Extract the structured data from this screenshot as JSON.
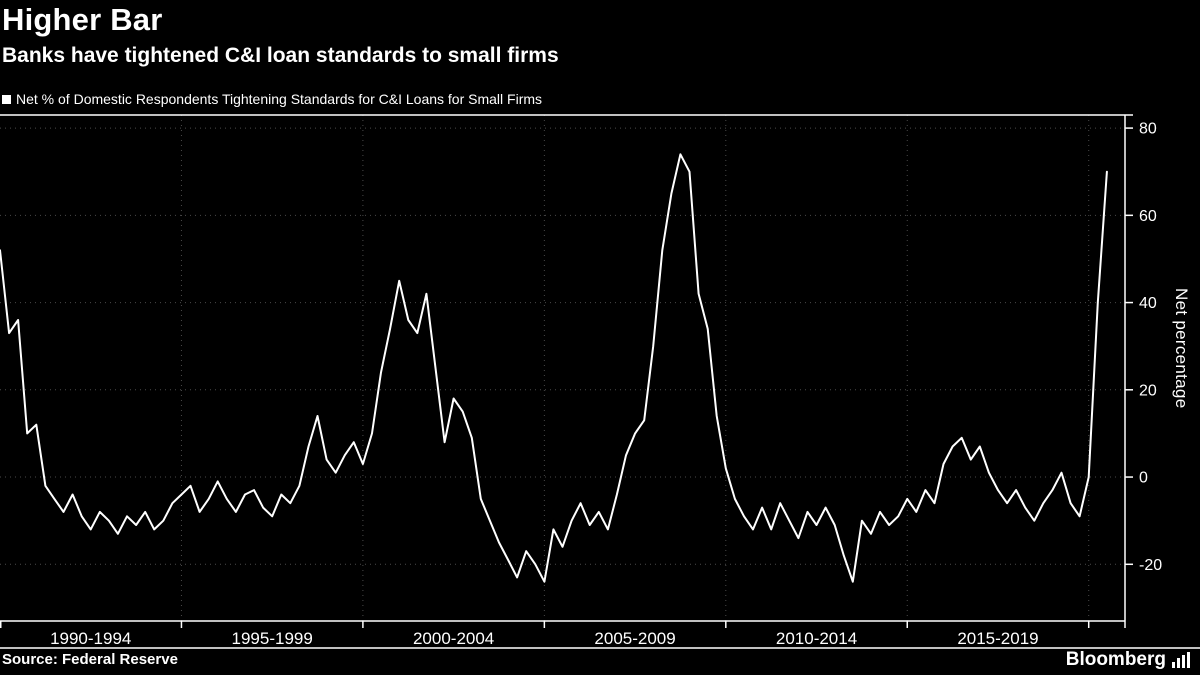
{
  "header": {
    "title": "Higher Bar",
    "subtitle": "Banks have tightened C&I loan standards to small firms",
    "legend": {
      "marker": "■",
      "label": "Net % of Domestic Respondents Tightening Standards for C&I Loans for Small Firms"
    }
  },
  "footer": {
    "source": "Source: Federal Reserve",
    "brand": "Bloomberg"
  },
  "chart_data": {
    "type": "line",
    "title": "Net % of Domestic Respondents Tightening Standards for C&I Loans for Small Firms",
    "ylabel": "Net percentage",
    "x_labels": [
      "1990-1994",
      "1995-1999",
      "2000-2004",
      "2005-2009",
      "2010-2014",
      "2015-2019"
    ],
    "y_ticks": [
      80,
      60,
      40,
      20,
      0,
      -20
    ],
    "ylim": [
      -33,
      83
    ],
    "frequency": "quarterly",
    "start_period": "1990",
    "values": [
      52,
      33,
      36,
      10,
      12,
      -2,
      -5,
      -8,
      -4,
      -9,
      -12,
      -8,
      -10,
      -13,
      -9,
      -11,
      -8,
      -12,
      -10,
      -6,
      -4,
      -2,
      -8,
      -5,
      -1,
      -5,
      -8,
      -4,
      -3,
      -7,
      -9,
      -4,
      -6,
      -2,
      7,
      14,
      4,
      1,
      5,
      8,
      3,
      10,
      24,
      34,
      45,
      36,
      33,
      42,
      25,
      8,
      18,
      15,
      9,
      -5,
      -10,
      -15,
      -19,
      -23,
      -17,
      -20,
      -24,
      -12,
      -16,
      -10,
      -6,
      -11,
      -8,
      -12,
      -4,
      5,
      10,
      13,
      30,
      52,
      65,
      74,
      70,
      42,
      34,
      14,
      2,
      -5,
      -9,
      -12,
      -7,
      -12,
      -6,
      -10,
      -14,
      -8,
      -11,
      -7,
      -11,
      -18,
      -24,
      -10,
      -13,
      -8,
      -11,
      -9,
      -5,
      -8,
      -3,
      -6,
      3,
      7,
      9,
      4,
      7,
      1,
      -3,
      -6,
      -3,
      -7,
      -10,
      -6,
      -3,
      1,
      -6,
      -9,
      0,
      40,
      70
    ],
    "grid": "dotted",
    "legend_position": "top-left",
    "colors": {
      "background": "#000000",
      "line": "#ffffff",
      "grid": "#4a4a4a",
      "text": "#ffffff"
    }
  }
}
